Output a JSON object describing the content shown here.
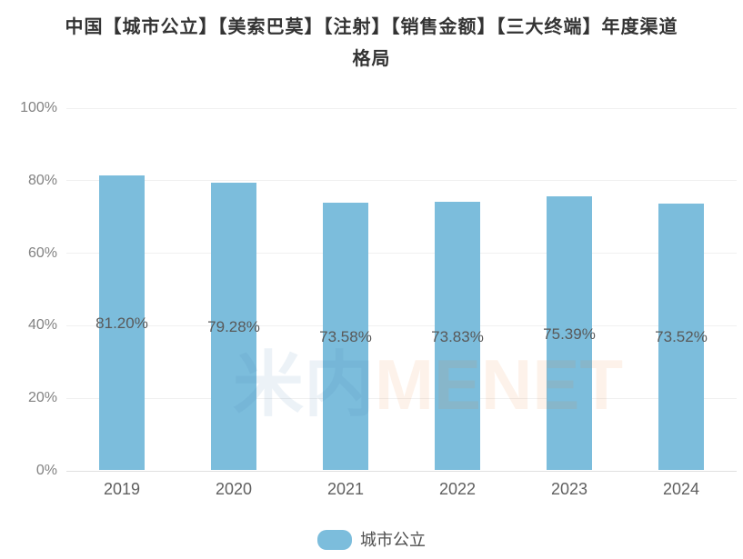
{
  "title": {
    "line1": "中国【城市公立】【美索巴莫】【注射】【销售金额】【三大终端】年度渠道",
    "line2": "格局"
  },
  "chart_data": {
    "type": "bar",
    "categories": [
      "2019",
      "2020",
      "2021",
      "2022",
      "2023",
      "2024"
    ],
    "series": [
      {
        "name": "城市公立",
        "values": [
          81.2,
          79.28,
          73.58,
          73.83,
          75.39,
          73.52
        ]
      }
    ],
    "value_labels": [
      "81.20%",
      "79.28%",
      "73.58%",
      "73.83%",
      "75.39%",
      "73.52%"
    ],
    "ylim": [
      0,
      100
    ],
    "yticks": [
      {
        "value": 0,
        "label": "0%"
      },
      {
        "value": 20,
        "label": "20%"
      },
      {
        "value": 40,
        "label": "40%"
      },
      {
        "value": 60,
        "label": "60%"
      },
      {
        "value": 80,
        "label": "80%"
      },
      {
        "value": 100,
        "label": "100%"
      }
    ],
    "grid": true,
    "legend_position": "bottom",
    "bar_color": "#7CBDDC"
  },
  "legend": {
    "label": "城市公立",
    "swatch_color": "#7CBDDC"
  },
  "watermark": {
    "parts": [
      {
        "text": "米内",
        "color": "rgba(70,130,180,0.10)"
      },
      {
        "text": "MENET",
        "color": "rgba(235,125,50,0.10)"
      }
    ]
  },
  "colors": {
    "title": "#333333",
    "axis_label": "#828282",
    "category_label": "#606060",
    "value_label": "#595959",
    "gridline": "#f0f0f0",
    "axis_line": "#e0e0e0"
  }
}
